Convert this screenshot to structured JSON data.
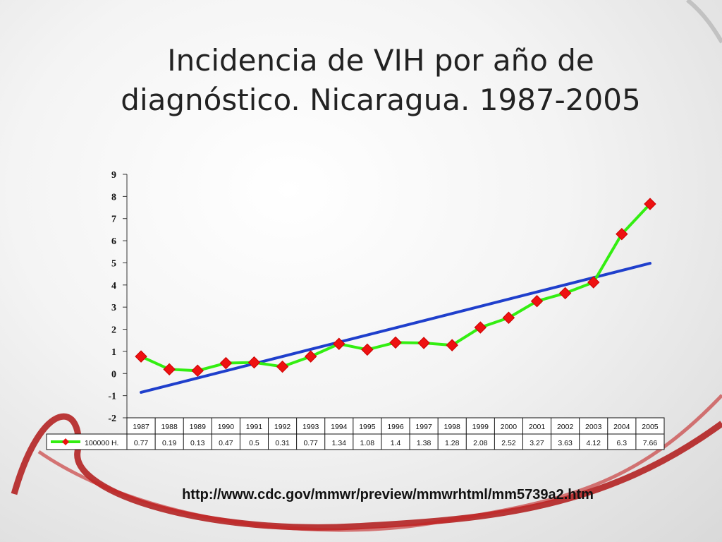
{
  "slide": {
    "title_line1": "Incidencia de VIH por año de",
    "title_line2": "diagnóstico. Nicaragua. 1987-2005",
    "source_url": "http://www.cdc.gov/mmwr/preview/mmwrhtml/mm5739a2.htm"
  },
  "colors": {
    "series_line": "#33ee11",
    "series_marker": "#ee1111",
    "trend_line": "#1f3fcc",
    "ribbon": "#b01818"
  },
  "chart_data": {
    "type": "line",
    "title": "",
    "xlabel": "",
    "ylabel": "",
    "ylim": [
      -2,
      9
    ],
    "yticks": [
      9,
      8,
      7,
      6,
      5,
      4,
      3,
      2,
      1,
      0,
      -1,
      -2
    ],
    "ytick_labels": [
      "9",
      "8",
      "7",
      "6",
      "5",
      "4",
      "3",
      "2",
      "1",
      "0",
      "-1",
      "-2"
    ],
    "categories": [
      "1987",
      "1988",
      "1989",
      "1990",
      "1991",
      "1992",
      "1993",
      "1994",
      "1995",
      "1996",
      "1997",
      "1998",
      "1999",
      "2000",
      "2001",
      "2002",
      "2003",
      "2004",
      "2005"
    ],
    "series": [
      {
        "name": "100000 H.",
        "values": [
          0.77,
          0.19,
          0.13,
          0.47,
          0.5,
          0.31,
          0.77,
          1.34,
          1.08,
          1.4,
          1.38,
          1.28,
          2.08,
          2.52,
          3.27,
          3.63,
          4.12,
          6.3,
          7.66
        ],
        "value_labels": [
          "0.77",
          "0.19",
          "0.13",
          "0.47",
          "0.5",
          "0.31",
          "0.77",
          "1.34",
          "1.08",
          "1.4",
          "1.38",
          "1.28",
          "2.08",
          "2.52",
          "3.27",
          "3.63",
          "4.12",
          "6.3",
          "7.66"
        ]
      }
    ],
    "trendline": {
      "type": "linear",
      "start": -0.85,
      "end": 4.98
    },
    "data_table": true,
    "grid": false
  }
}
